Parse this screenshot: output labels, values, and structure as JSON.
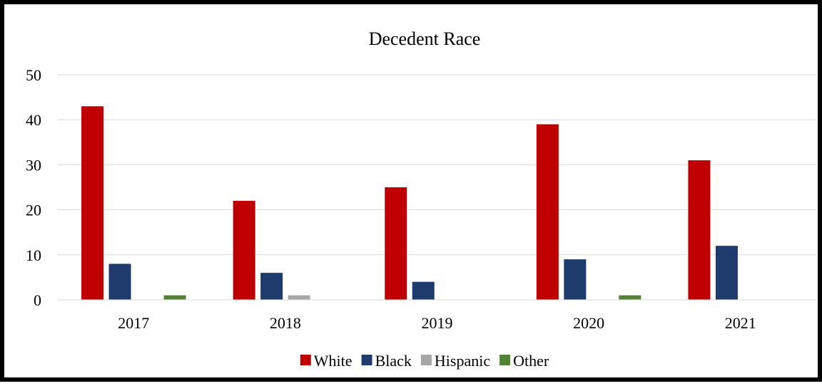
{
  "chart_data": {
    "type": "bar",
    "title": "Decedent Race",
    "xlabel": "",
    "ylabel": "",
    "ylim": [
      0,
      50
    ],
    "yticks": [
      0,
      10,
      20,
      30,
      40,
      50
    ],
    "grid": true,
    "legend_position": "bottom",
    "categories": [
      "2017",
      "2018",
      "2019",
      "2020",
      "2021"
    ],
    "series": [
      {
        "name": "White",
        "color": "#C00000",
        "values": [
          43,
          22,
          25,
          39,
          31
        ]
      },
      {
        "name": "Black",
        "color": "#1F3B6E",
        "values": [
          8,
          6,
          4,
          9,
          12
        ]
      },
      {
        "name": "Hispanic",
        "color": "#A6A6A6",
        "values": [
          0,
          1,
          0,
          0,
          0
        ]
      },
      {
        "name": "Other",
        "color": "#548235",
        "values": [
          1,
          0,
          0,
          1,
          0
        ]
      }
    ]
  }
}
